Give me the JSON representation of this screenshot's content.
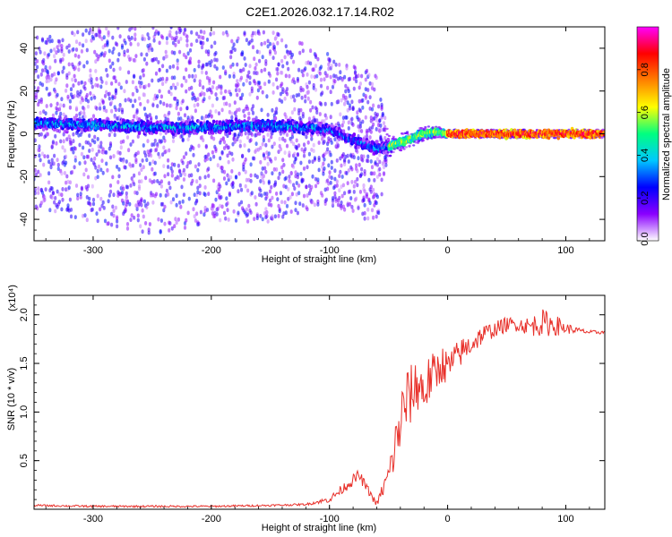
{
  "title": "C2E1.2026.032.17.14.R02",
  "chart_data": [
    {
      "type": "heatmap",
      "title": "C2E1.2026.032.17.14.R02",
      "xlabel": "Height of straight line (km)",
      "ylabel": "Frequency (Hz)",
      "xlim": [
        -350,
        133
      ],
      "ylim": [
        -50,
        50
      ],
      "xticks": [
        -300,
        -200,
        -100,
        0,
        100
      ],
      "yticks": [
        -40,
        -20,
        0,
        20,
        40
      ],
      "colorbar": {
        "label": "Normalized spectral amplitude",
        "range": [
          0.0,
          1.0
        ],
        "ticks": [
          0.0,
          0.2,
          0.4,
          0.6,
          0.8
        ],
        "tick_labels": [
          "0.0",
          "0.2",
          "0.4",
          "0.6",
          "0.8"
        ],
        "colors": [
          "#ffffff",
          "#8a00ff",
          "#0000ff",
          "#00c8ff",
          "#00ff80",
          "#ffff00",
          "#ff8000",
          "#ff0000",
          "#ff00ff"
        ]
      },
      "center_frequency_track": {
        "x": [
          -350,
          -300,
          -250,
          -200,
          -150,
          -100,
          -80,
          -60,
          -50,
          -40,
          -30,
          -20,
          -10,
          0,
          50,
          100,
          133
        ],
        "y": [
          5,
          4,
          3,
          3,
          4,
          2,
          -3,
          -7,
          -6,
          -4,
          -2,
          0,
          1,
          0,
          0,
          0,
          0
        ]
      },
      "scatter_extent_hz": {
        "x": [
          -350,
          -300,
          -250,
          -200,
          -150,
          -100,
          -80,
          -60,
          -50,
          -40,
          -30,
          -20,
          -10,
          0,
          50,
          100,
          133
        ],
        "y": [
          40,
          45,
          50,
          45,
          45,
          35,
          35,
          35,
          5,
          4,
          4,
          3,
          3,
          2,
          2,
          2,
          2
        ]
      }
    },
    {
      "type": "line",
      "xlabel": "Height of straight line (km)",
      "ylabel": "SNR (10 * v/v)",
      "y_multiplier": "(x10⁴)",
      "xlim": [
        -350,
        133
      ],
      "ylim": [
        0,
        2.2
      ],
      "xticks": [
        -300,
        -200,
        -100,
        0,
        100
      ],
      "yticks": [
        0.5,
        1.0,
        1.5,
        2.0
      ],
      "ytick_labels": [
        "0.5",
        "1.0",
        "1.5",
        "2.0"
      ],
      "color": "#e8302a",
      "series": [
        {
          "name": "SNR",
          "x": [
            -350,
            -300,
            -250,
            -200,
            -150,
            -120,
            -100,
            -90,
            -80,
            -75,
            -70,
            -60,
            -55,
            -50,
            -45,
            -40,
            -35,
            -30,
            -25,
            -20,
            -15,
            -10,
            -5,
            0,
            10,
            20,
            30,
            40,
            50,
            60,
            70,
            80,
            90,
            100,
            110,
            120,
            133
          ],
          "y": [
            0.04,
            0.03,
            0.03,
            0.03,
            0.04,
            0.05,
            0.1,
            0.2,
            0.3,
            0.35,
            0.25,
            0.05,
            0.2,
            0.35,
            0.6,
            0.9,
            1.1,
            1.2,
            1.3,
            1.2,
            1.35,
            1.4,
            1.5,
            1.45,
            1.6,
            1.7,
            1.8,
            1.85,
            1.9,
            1.9,
            1.88,
            1.92,
            1.9,
            1.86,
            1.84,
            1.82,
            1.82
          ],
          "noise": [
            0.01,
            0.01,
            0.01,
            0.01,
            0.01,
            0.01,
            0.03,
            0.05,
            0.06,
            0.06,
            0.05,
            0.03,
            0.08,
            0.12,
            0.25,
            0.35,
            0.35,
            0.3,
            0.3,
            0.3,
            0.25,
            0.22,
            0.2,
            0.18,
            0.15,
            0.12,
            0.1,
            0.08,
            0.08,
            0.07,
            0.1,
            0.14,
            0.12,
            0.06,
            0.03,
            0.02,
            0.02
          ]
        }
      ]
    }
  ]
}
